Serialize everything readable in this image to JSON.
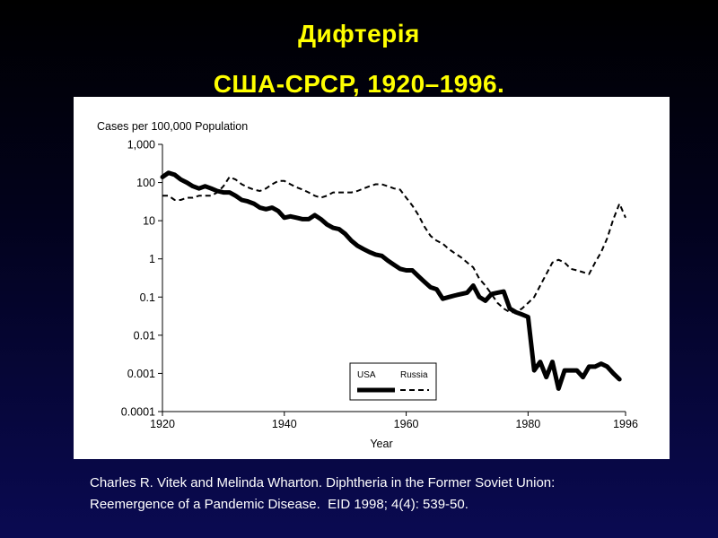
{
  "slide": {
    "title_line1": "Дифтерія",
    "title_line2": "США-СРСР, 1920–1996.",
    "title_color": "#ffff00"
  },
  "caption": {
    "line1_authors": "Charles R. Vitek and Melinda Wharton.",
    "line1_title": " Diphtheria in the Former Soviet Union:",
    "line2_title": "Reemergence of a Pandemic Disease.",
    "line2_citation": "  EID 1998; 4(4): 539-50."
  },
  "chart_data": {
    "type": "line",
    "title": "",
    "ylabel": "Cases per 100,000 Population",
    "xlabel": "Year",
    "y_scale": "log",
    "ylim": [
      0.0001,
      1000
    ],
    "xlim": [
      1920,
      1996
    ],
    "x_ticks": [
      1920,
      1940,
      1960,
      1980,
      1996
    ],
    "x_tick_labels": [
      "1920",
      "1940",
      "1960",
      "1980",
      "1996"
    ],
    "y_ticks": [
      0.0001,
      0.001,
      0.01,
      0.1,
      1,
      10,
      100,
      1000
    ],
    "y_tick_labels": [
      "0.0001",
      "0.001",
      "0.01",
      "0.1",
      "1",
      "10",
      "100",
      "1,000"
    ],
    "grid": false,
    "legend_position": "bottom-right",
    "series": [
      {
        "name": "USA",
        "style": "solid-thick",
        "color": "#000000",
        "x": [
          1920,
          1921,
          1922,
          1923,
          1924,
          1925,
          1926,
          1927,
          1928,
          1929,
          1930,
          1931,
          1932,
          1933,
          1934,
          1935,
          1936,
          1937,
          1938,
          1939,
          1940,
          1941,
          1942,
          1943,
          1944,
          1945,
          1946,
          1947,
          1948,
          1949,
          1950,
          1951,
          1952,
          1953,
          1954,
          1955,
          1956,
          1957,
          1958,
          1959,
          1960,
          1961,
          1962,
          1963,
          1964,
          1965,
          1966,
          1967,
          1968,
          1969,
          1970,
          1971,
          1972,
          1973,
          1974,
          1975,
          1976,
          1977,
          1978,
          1979,
          1980,
          1981,
          1982,
          1983,
          1984,
          1985,
          1986,
          1987,
          1988,
          1989,
          1990,
          1991,
          1992,
          1993,
          1994,
          1995
        ],
        "y": [
          140,
          180,
          160,
          120,
          100,
          80,
          70,
          80,
          70,
          60,
          55,
          55,
          45,
          35,
          32,
          28,
          22,
          20,
          22,
          18,
          12,
          13,
          12,
          11,
          11,
          14,
          11,
          8,
          6.5,
          6,
          4.5,
          3,
          2.2,
          1.8,
          1.5,
          1.3,
          1.2,
          0.9,
          0.7,
          0.55,
          0.5,
          0.5,
          0.35,
          0.25,
          0.18,
          0.16,
          0.09,
          0.1,
          0.11,
          0.12,
          0.13,
          0.2,
          0.1,
          0.08,
          0.12,
          0.13,
          0.14,
          0.05,
          0.04,
          0.035,
          0.03,
          0.0012,
          0.002,
          0.0008,
          0.002,
          0.0004,
          0.0012,
          0.0012,
          0.0012,
          0.0008,
          0.0015,
          0.0015,
          0.0018,
          0.0015,
          0.001,
          0.0007
        ]
      },
      {
        "name": "Russia",
        "style": "dashed",
        "color": "#000000",
        "x": [
          1920,
          1921,
          1922,
          1923,
          1924,
          1925,
          1926,
          1927,
          1928,
          1929,
          1930,
          1931,
          1932,
          1933,
          1934,
          1935,
          1936,
          1937,
          1938,
          1939,
          1940,
          1941,
          1942,
          1943,
          1944,
          1945,
          1946,
          1947,
          1948,
          1949,
          1950,
          1951,
          1952,
          1953,
          1954,
          1955,
          1956,
          1957,
          1958,
          1959,
          1960,
          1961,
          1962,
          1963,
          1964,
          1965,
          1966,
          1967,
          1968,
          1969,
          1970,
          1971,
          1972,
          1973,
          1974,
          1975,
          1976,
          1977,
          1978,
          1979,
          1980,
          1981,
          1982,
          1983,
          1984,
          1985,
          1986,
          1987,
          1988,
          1989,
          1990,
          1991,
          1992,
          1993,
          1994,
          1995,
          1996
        ],
        "y": [
          45,
          45,
          35,
          35,
          40,
          40,
          45,
          45,
          45,
          55,
          80,
          140,
          120,
          90,
          75,
          65,
          60,
          70,
          90,
          110,
          110,
          90,
          75,
          65,
          55,
          45,
          40,
          45,
          55,
          55,
          55,
          55,
          60,
          70,
          80,
          90,
          90,
          80,
          70,
          65,
          40,
          25,
          14,
          7,
          4,
          3,
          2.5,
          1.8,
          1.4,
          1.1,
          0.8,
          0.6,
          0.3,
          0.2,
          0.12,
          0.07,
          0.05,
          0.04,
          0.04,
          0.05,
          0.07,
          0.1,
          0.2,
          0.4,
          0.8,
          0.95,
          0.8,
          0.55,
          0.5,
          0.45,
          0.4,
          0.8,
          1.5,
          3.5,
          11,
          28,
          12
        ]
      }
    ]
  }
}
